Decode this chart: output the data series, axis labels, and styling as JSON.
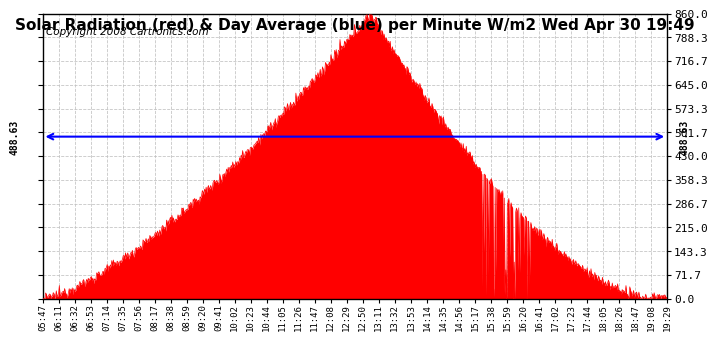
{
  "title": "Solar Radiation (red) & Day Average (blue) per Minute W/m2 Wed Apr 30 19:49",
  "copyright": "Copyright 2008 Cartronics.com",
  "avg_value": 488.63,
  "y_max": 860.0,
  "y_min": 0.0,
  "y_ticks": [
    0.0,
    71.7,
    143.3,
    215.0,
    286.7,
    358.3,
    430.0,
    501.7,
    573.3,
    645.0,
    716.7,
    788.3,
    860.0
  ],
  "x_labels": [
    "05:47",
    "06:11",
    "06:32",
    "06:53",
    "07:14",
    "07:35",
    "07:56",
    "08:17",
    "08:38",
    "08:59",
    "09:20",
    "09:41",
    "10:02",
    "10:23",
    "10:44",
    "11:05",
    "11:26",
    "11:47",
    "12:08",
    "12:29",
    "12:50",
    "13:11",
    "13:32",
    "13:53",
    "14:14",
    "14:35",
    "14:56",
    "15:17",
    "15:38",
    "15:59",
    "16:20",
    "16:41",
    "17:02",
    "17:23",
    "17:44",
    "18:05",
    "18:26",
    "18:47",
    "19:08",
    "19:29"
  ],
  "fill_color": "#FF0000",
  "line_color": "#0000FF",
  "bg_color": "#FFFFFF",
  "grid_color": "#C0C0C0",
  "title_fontsize": 11,
  "copyright_fontsize": 7.5,
  "tick_fontsize": 8
}
